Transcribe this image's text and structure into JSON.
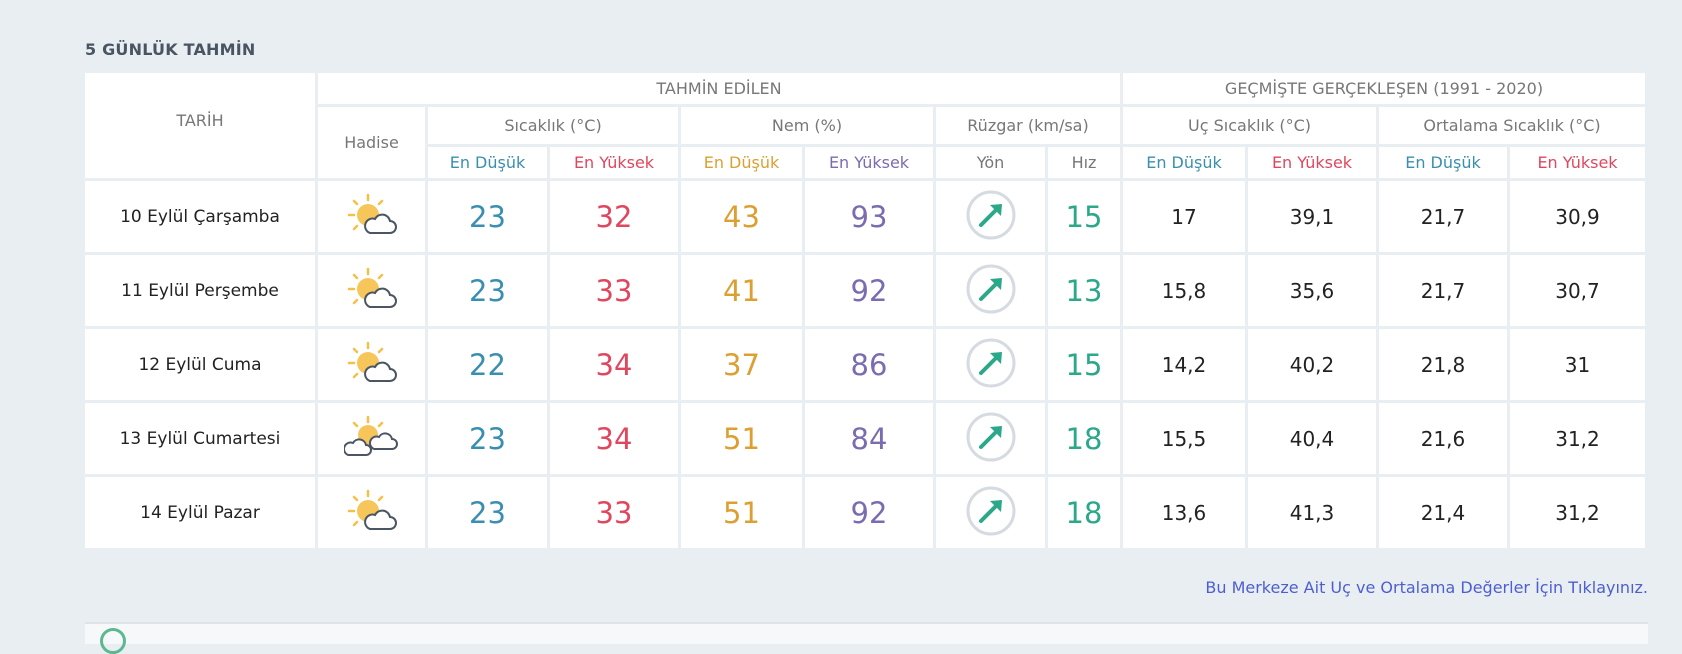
{
  "title": "5 GÜNLÜK TAHMİN",
  "headers": {
    "date": "TARİH",
    "forecast_group": "TAHMİN EDİLEN",
    "history_group": "GEÇMİŞTE GERÇEKLEŞEN (1991 - 2020)",
    "event": "Hadise",
    "temperature": "Sıcaklık (°C)",
    "humidity": "Nem (%)",
    "wind": "Rüzgar (km/sa)",
    "extreme_temp": "Uç Sıcaklık (°C)",
    "avg_temp": "Ortalama Sıcaklık (°C)",
    "low": "En Düşük",
    "high": "En Yüksek",
    "direction": "Yön",
    "speed": "Hız"
  },
  "colors": {
    "low": "#3a8fb0",
    "high": "#e0475f",
    "humidity_low": "#dca032",
    "humidity_high": "#7b6bb0",
    "wind": "#2aa889",
    "link": "#4d5fd0"
  },
  "rows": [
    {
      "date": "10 Eylül Çarşamba",
      "icon": "partly-cloudy-icon",
      "t_low": "23",
      "t_high": "32",
      "h_low": "43",
      "h_high": "93",
      "wind_dir": "northeast-arrow-icon",
      "wind_speed": "15",
      "x_low": "17",
      "x_high": "39,1",
      "a_low": "21,7",
      "a_high": "30,9"
    },
    {
      "date": "11 Eylül Perşembe",
      "icon": "partly-cloudy-icon",
      "t_low": "23",
      "t_high": "33",
      "h_low": "41",
      "h_high": "92",
      "wind_dir": "northeast-arrow-icon",
      "wind_speed": "13",
      "x_low": "15,8",
      "x_high": "35,6",
      "a_low": "21,7",
      "a_high": "30,7"
    },
    {
      "date": "12 Eylül Cuma",
      "icon": "partly-cloudy-icon",
      "t_low": "22",
      "t_high": "34",
      "h_low": "37",
      "h_high": "86",
      "wind_dir": "northeast-arrow-icon",
      "wind_speed": "15",
      "x_low": "14,2",
      "x_high": "40,2",
      "a_low": "21,8",
      "a_high": "31"
    },
    {
      "date": "13 Eylül Cumartesi",
      "icon": "mostly-cloudy-icon",
      "t_low": "23",
      "t_high": "34",
      "h_low": "51",
      "h_high": "84",
      "wind_dir": "northeast-arrow-icon",
      "wind_speed": "18",
      "x_low": "15,5",
      "x_high": "40,4",
      "a_low": "21,6",
      "a_high": "31,2"
    },
    {
      "date": "14 Eylül Pazar",
      "icon": "partly-cloudy-icon",
      "t_low": "23",
      "t_high": "33",
      "h_low": "51",
      "h_high": "92",
      "wind_dir": "northeast-arrow-icon",
      "wind_speed": "18",
      "x_low": "13,6",
      "x_high": "41,3",
      "a_low": "21,4",
      "a_high": "31,2"
    }
  ],
  "link": "Bu Merkeze Ait Uç ve Ortalama Değerler İçin Tıklayınız."
}
